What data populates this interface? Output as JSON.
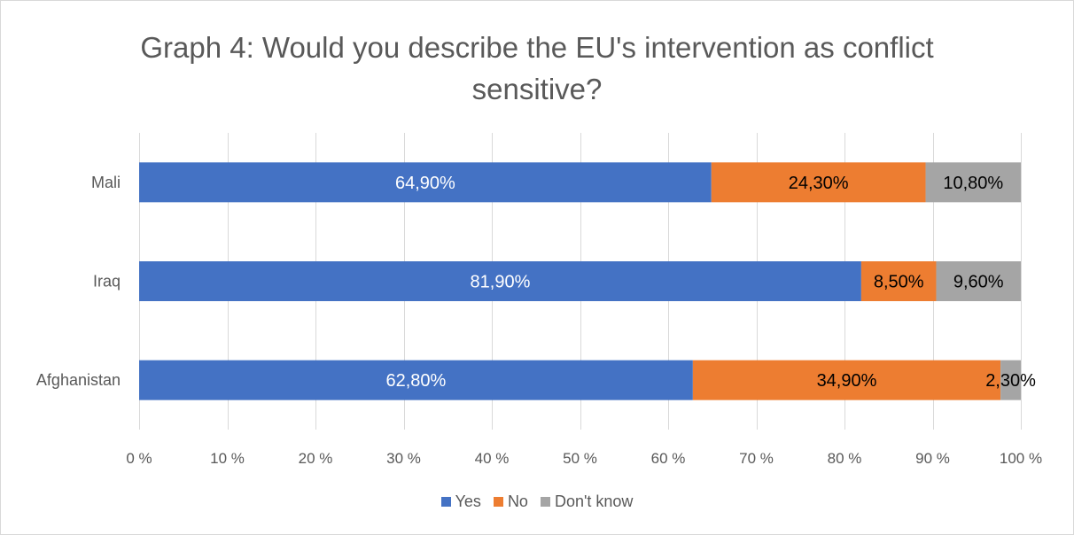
{
  "chart_data": {
    "type": "bar",
    "orientation": "horizontal",
    "stacked": true,
    "title_lines": [
      "Graph 4: Would you describe the EU's intervention as conflict",
      "sensitive?"
    ],
    "categories": [
      "Mali",
      "Iraq",
      "Afghanistan"
    ],
    "series": [
      {
        "name": "Yes",
        "color": "#4472c4",
        "label_color": "#ffffff",
        "values": [
          64.9,
          81.9,
          62.8
        ],
        "labels": [
          "64,90%",
          "81,90%",
          "62,80%"
        ]
      },
      {
        "name": "No",
        "color": "#ed7d31",
        "label_color": "#000000",
        "values": [
          24.3,
          8.5,
          34.9
        ],
        "labels": [
          "24,30%",
          "8,50%",
          "34,90%"
        ]
      },
      {
        "name": "Don't know",
        "color": "#a5a5a5",
        "label_color": "#000000",
        "values": [
          10.8,
          9.6,
          2.3
        ],
        "labels": [
          "10,80%",
          "9,60%",
          "2,30%"
        ]
      }
    ],
    "x_ticks": [
      "0 %",
      "10 %",
      "20 %",
      "30 %",
      "40 %",
      "50 %",
      "60 %",
      "70 %",
      "80 %",
      "90 %",
      "100 %"
    ],
    "xlim": [
      0,
      100
    ],
    "grid": true,
    "legend_position": "bottom"
  }
}
